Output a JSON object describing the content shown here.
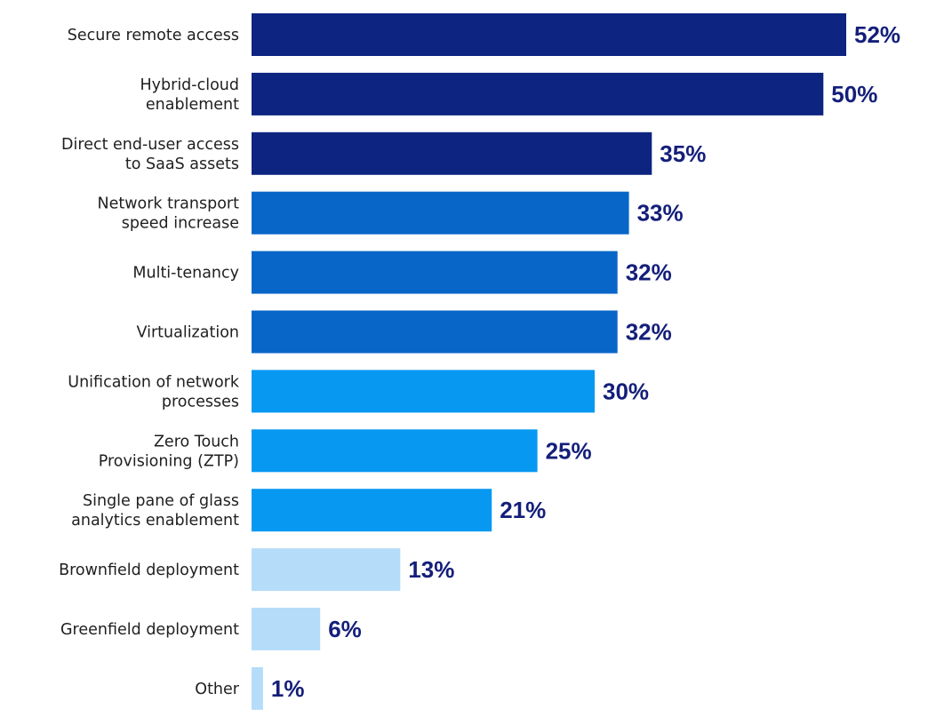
{
  "chart_data": {
    "type": "bar",
    "orientation": "horizontal",
    "categories": [
      [
        "Secure remote access"
      ],
      [
        "Hybrid-cloud",
        "enablement"
      ],
      [
        "Direct end-user access",
        "to SaaS assets"
      ],
      [
        "Network transport",
        "speed increase"
      ],
      [
        "Multi-tenancy"
      ],
      [
        "Virtualization"
      ],
      [
        "Unification of network",
        "processes"
      ],
      [
        "Zero Touch",
        "Provisioning (ZTP)"
      ],
      [
        "Single pane of glass",
        "analytics enablement"
      ],
      [
        "Brownfield deployment"
      ],
      [
        "Greenfield deployment"
      ],
      [
        "Other"
      ]
    ],
    "values": [
      52,
      50,
      35,
      33,
      32,
      32,
      30,
      25,
      21,
      13,
      6,
      1
    ],
    "value_labels": [
      "52%",
      "50%",
      "35%",
      "33%",
      "32%",
      "32%",
      "30%",
      "25%",
      "21%",
      "13%",
      "6%",
      "1%"
    ],
    "bar_colors": [
      "#0d2480",
      "#0d2480",
      "#0d2480",
      "#0866c8",
      "#0866c8",
      "#0866c8",
      "#0798f2",
      "#0798f2",
      "#0798f2",
      "#b5ddfa",
      "#b5ddfa",
      "#b5ddfa"
    ],
    "value_label_color": "#141f7a",
    "xlim": [
      0,
      52
    ],
    "grid": false,
    "legend": "none"
  }
}
